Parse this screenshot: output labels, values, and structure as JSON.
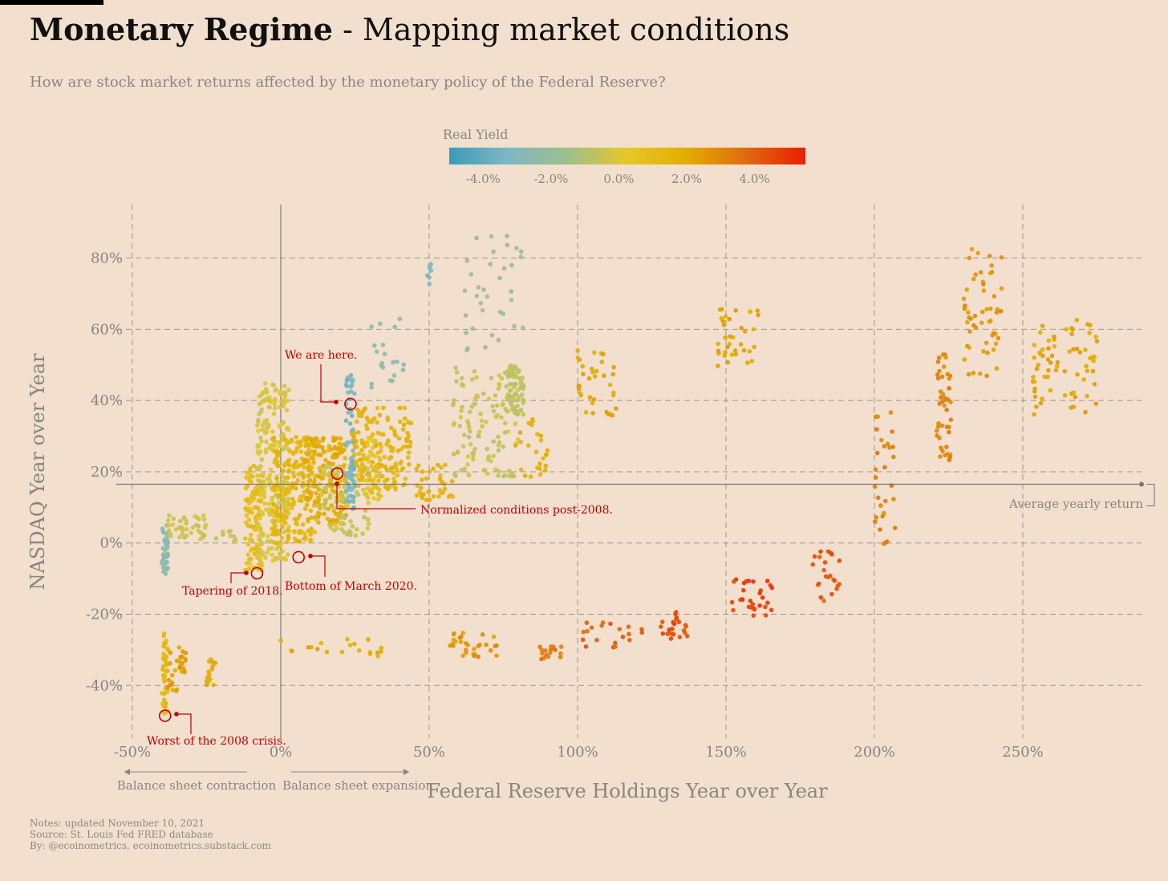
{
  "header": {
    "title_bold": "Monetary Regime",
    "title_rest": " - Mapping market conditions",
    "subtitle": "How are stock market returns affected by the monetary policy of the Federal Reserve?"
  },
  "notes": [
    "Notes: updated November 10, 2021",
    "Source: St. Louis Fed FRED database",
    "By: @ecoinometrics, ecoinometrics.substack.com"
  ],
  "colors": {
    "background": "#f2dfcd",
    "axis_text": "#8a8580",
    "grid": "#8a8580",
    "annotation": "#c00000",
    "gradient_stops": [
      "#3a9bb8",
      "#7fb8c4",
      "#9fbf8a",
      "#e6c72a",
      "#e2ad00",
      "#e06a10",
      "#ea1e00"
    ]
  },
  "chart_data": {
    "type": "scatter",
    "xlabel": "Federal Reserve Holdings Year over Year",
    "ylabel": "NASDAQ Year over Year",
    "xlim": [
      -50,
      290
    ],
    "ylim": [
      -53,
      95
    ],
    "x_ticks": [
      -50,
      0,
      50,
      100,
      150,
      200,
      250
    ],
    "x_tick_labels": [
      "-50%",
      "0%",
      "50%",
      "100%",
      "150%",
      "200%",
      "250%"
    ],
    "y_ticks": [
      -40,
      -20,
      0,
      20,
      40,
      60,
      80
    ],
    "y_tick_labels": [
      "-40%",
      "-20%",
      "0%",
      "20%",
      "40%",
      "60%",
      "80%"
    ],
    "grid": true,
    "color_scale": {
      "title": "Real Yield",
      "range": [
        -5,
        5.5
      ],
      "ticks": [
        -4,
        -2,
        0,
        2,
        4
      ],
      "tick_labels": [
        "-4.0%",
        "-2.0%",
        "0.0%",
        "2.0%",
        "4.0%"
      ]
    },
    "direction_labels": {
      "left": "Balance sheet contraction",
      "right": "Balance sheet expansion"
    },
    "average_line": {
      "y": 16.5,
      "label": "Average yearly return"
    },
    "annotations": [
      {
        "label": "We are here.",
        "x": 23.5,
        "y": 39
      },
      {
        "label": "Normalized conditions post-2008.",
        "x": 19,
        "y": 19.5
      },
      {
        "label": "Tapering of 2018.",
        "x": -8,
        "y": -8.5
      },
      {
        "label": "Bottom of March 2020.",
        "x": 6,
        "y": -4
      },
      {
        "label": "Worst of the 2008 crisis.",
        "x": -39,
        "y": -48.5
      }
    ],
    "clusters": [
      {
        "x": [
          -40,
          -38
        ],
        "y": [
          -10,
          5
        ],
        "yield": -2.6,
        "n": 40
      },
      {
        "x": [
          -40,
          -38
        ],
        "y": [
          -48,
          -25
        ],
        "yield": 1.2,
        "n": 45
      },
      {
        "x": [
          -38,
          -32
        ],
        "y": [
          -42,
          -28
        ],
        "yield": 2.3,
        "n": 30
      },
      {
        "x": [
          -25,
          -22
        ],
        "y": [
          -40,
          -32
        ],
        "yield": 2.0,
        "n": 16
      },
      {
        "x": [
          -38,
          -25
        ],
        "y": [
          1,
          8
        ],
        "yield": -0.4,
        "n": 40
      },
      {
        "x": [
          -22,
          -14
        ],
        "y": [
          0,
          4
        ],
        "yield": -0.6,
        "n": 10
      },
      {
        "x": [
          -12,
          -6
        ],
        "y": [
          -8,
          22
        ],
        "yield": 0.9,
        "n": 110
      },
      {
        "x": [
          -8,
          3
        ],
        "y": [
          -5,
          45
        ],
        "yield": -0.1,
        "n": 240
      },
      {
        "x": [
          -3,
          12
        ],
        "y": [
          0,
          30
        ],
        "yield": 1.4,
        "n": 200
      },
      {
        "x": [
          8,
          22
        ],
        "y": [
          5,
          30
        ],
        "yield": 1.9,
        "n": 160
      },
      {
        "x": [
          12,
          30
        ],
        "y": [
          2,
          22
        ],
        "yield": -0.5,
        "n": 90
      },
      {
        "x": [
          22,
          25
        ],
        "y": [
          8,
          48
        ],
        "yield": -3.4,
        "n": 70
      },
      {
        "x": [
          24,
          44
        ],
        "y": [
          15,
          38
        ],
        "yield": 1.5,
        "n": 150
      },
      {
        "x": [
          28,
          34
        ],
        "y": [
          12,
          30
        ],
        "yield": 0.6,
        "n": 40
      },
      {
        "x": [
          30,
          42
        ],
        "y": [
          42,
          64
        ],
        "yield": -2.6,
        "n": 20
      },
      {
        "x": [
          49,
          51
        ],
        "y": [
          70,
          82
        ],
        "yield": -3.0,
        "n": 8
      },
      {
        "x": [
          45,
          58
        ],
        "y": [
          12,
          22
        ],
        "yield": 1.7,
        "n": 35
      },
      {
        "x": [
          58,
          80
        ],
        "y": [
          18,
          50
        ],
        "yield": -0.6,
        "n": 120
      },
      {
        "x": [
          62,
          84
        ],
        "y": [
          54,
          88
        ],
        "yield": -1.8,
        "n": 35
      },
      {
        "x": [
          76,
          82
        ],
        "y": [
          36,
          50
        ],
        "yield": -0.8,
        "n": 60
      },
      {
        "x": [
          78,
          90
        ],
        "y": [
          18,
          36
        ],
        "yield": 1.8,
        "n": 25
      },
      {
        "x": [
          100,
          113
        ],
        "y": [
          35,
          55
        ],
        "yield": 2.1,
        "n": 35
      },
      {
        "x": [
          147,
          161
        ],
        "y": [
          49,
          66
        ],
        "yield": 2.2,
        "n": 35
      },
      {
        "x": [
          221,
          226
        ],
        "y": [
          23,
          54
        ],
        "yield": 3.0,
        "n": 45
      },
      {
        "x": [
          230,
          243
        ],
        "y": [
          46,
          84
        ],
        "yield": 2.6,
        "n": 55
      },
      {
        "x": [
          253,
          275
        ],
        "y": [
          36,
          63
        ],
        "yield": 2.2,
        "n": 70
      },
      {
        "x": [
          0,
          35
        ],
        "y": [
          -32,
          -27
        ],
        "yield": 1.9,
        "n": 20
      },
      {
        "x": [
          57,
          73
        ],
        "y": [
          -32,
          -25
        ],
        "yield": 2.6,
        "n": 30
      },
      {
        "x": [
          87,
          100
        ],
        "y": [
          -33,
          -29
        ],
        "yield": 3.4,
        "n": 16
      },
      {
        "x": [
          101,
          122
        ],
        "y": [
          -30,
          -22
        ],
        "yield": 4.0,
        "n": 20
      },
      {
        "x": [
          128,
          137
        ],
        "y": [
          -27,
          -19
        ],
        "yield": 4.4,
        "n": 26
      },
      {
        "x": [
          151,
          166
        ],
        "y": [
          -21,
          -10
        ],
        "yield": 4.7,
        "n": 30
      },
      {
        "x": [
          179,
          189
        ],
        "y": [
          -18,
          -2
        ],
        "yield": 4.2,
        "n": 24
      },
      {
        "x": [
          200,
          207
        ],
        "y": [
          -1,
          37
        ],
        "yield": 3.2,
        "n": 30
      }
    ]
  }
}
